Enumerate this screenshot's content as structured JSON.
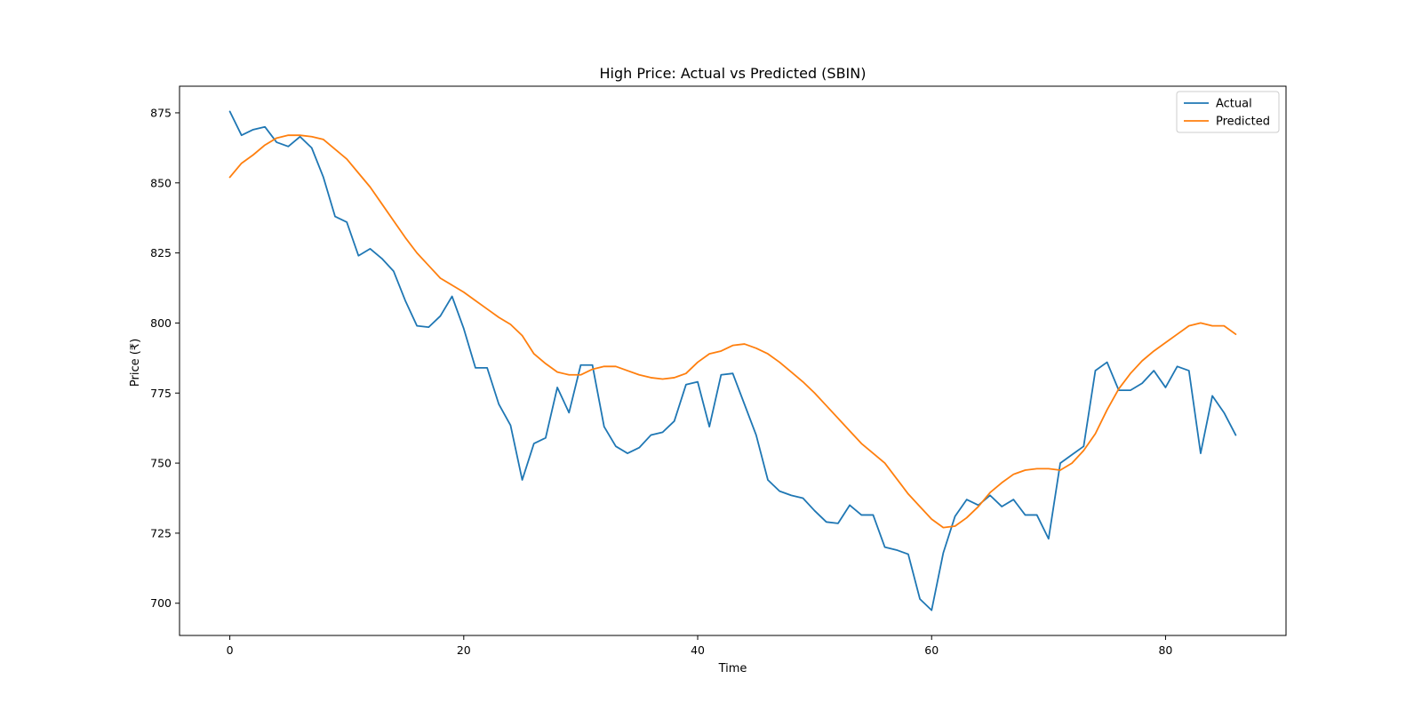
{
  "chart_data": {
    "type": "line",
    "title": "High Price: Actual vs Predicted (SBIN)",
    "xlabel": "Time",
    "ylabel": "Price (₹)",
    "xlim": [
      -4.3,
      90.3
    ],
    "ylim": [
      688.5,
      884.5
    ],
    "xticks": [
      0,
      20,
      40,
      60,
      80
    ],
    "yticks": [
      700,
      725,
      750,
      775,
      800,
      825,
      850,
      875
    ],
    "grid": false,
    "legend_position": "top-right",
    "x": [
      0,
      1,
      2,
      3,
      4,
      5,
      6,
      7,
      8,
      9,
      10,
      11,
      12,
      13,
      14,
      15,
      16,
      17,
      18,
      19,
      20,
      21,
      22,
      23,
      24,
      25,
      26,
      27,
      28,
      29,
      30,
      31,
      32,
      33,
      34,
      35,
      36,
      37,
      38,
      39,
      40,
      41,
      42,
      43,
      44,
      45,
      46,
      47,
      48,
      49,
      50,
      51,
      52,
      53,
      54,
      55,
      56,
      57,
      58,
      59,
      60,
      61,
      62,
      63,
      64,
      65,
      66,
      67,
      68,
      69,
      70,
      71,
      72,
      73,
      74,
      75,
      76,
      77,
      78,
      79,
      80,
      81,
      82,
      83,
      84,
      85,
      86
    ],
    "series": [
      {
        "name": "Actual",
        "color": "#1f77b4",
        "values": [
          875.5,
          867,
          869,
          870,
          864.5,
          863,
          866.5,
          862.5,
          852,
          838,
          836,
          824,
          826.5,
          823,
          818.5,
          808,
          799,
          798.5,
          802.5,
          809.5,
          798,
          784,
          784,
          771,
          763.5,
          744,
          757,
          759,
          777,
          768,
          785,
          785,
          763,
          756,
          753.5,
          755.5,
          760,
          761,
          765,
          778,
          779,
          763,
          781.5,
          782,
          771,
          760,
          744,
          740,
          738.5,
          737.5,
          733,
          729,
          728.5,
          735,
          731.5,
          731.5,
          720,
          719,
          717.5,
          701.5,
          697.5,
          718,
          731,
          737,
          735,
          738.5,
          734.5,
          737,
          731.5,
          731.5,
          723,
          750,
          753,
          756,
          783,
          786,
          776,
          776,
          778.5,
          783,
          777,
          784.5,
          783,
          753.5,
          774,
          768,
          760
        ]
      },
      {
        "name": "Predicted",
        "color": "#ff7f0e",
        "values": [
          852,
          857,
          860,
          863.5,
          866,
          867,
          867,
          866.5,
          865.5,
          862,
          858.5,
          853.5,
          848.5,
          842.5,
          836.5,
          830.5,
          825,
          820.5,
          816,
          813.5,
          811,
          808,
          805,
          802,
          799.5,
          795.5,
          789,
          785.5,
          782.5,
          781.5,
          781.5,
          783.5,
          784.5,
          784.5,
          783,
          781.5,
          780.5,
          780,
          780.5,
          782,
          786,
          789,
          790,
          792,
          792.5,
          791,
          789,
          786,
          782.5,
          779,
          775,
          770.5,
          766,
          761.5,
          757,
          753.5,
          750,
          744.5,
          739,
          734.5,
          730,
          727,
          727.5,
          730.5,
          734.5,
          739.5,
          743,
          746,
          747.5,
          748,
          748,
          747.5,
          750,
          754.5,
          760.5,
          769,
          776.5,
          782,
          786.5,
          790,
          793,
          796,
          799,
          800,
          799,
          799,
          796
        ]
      }
    ]
  }
}
